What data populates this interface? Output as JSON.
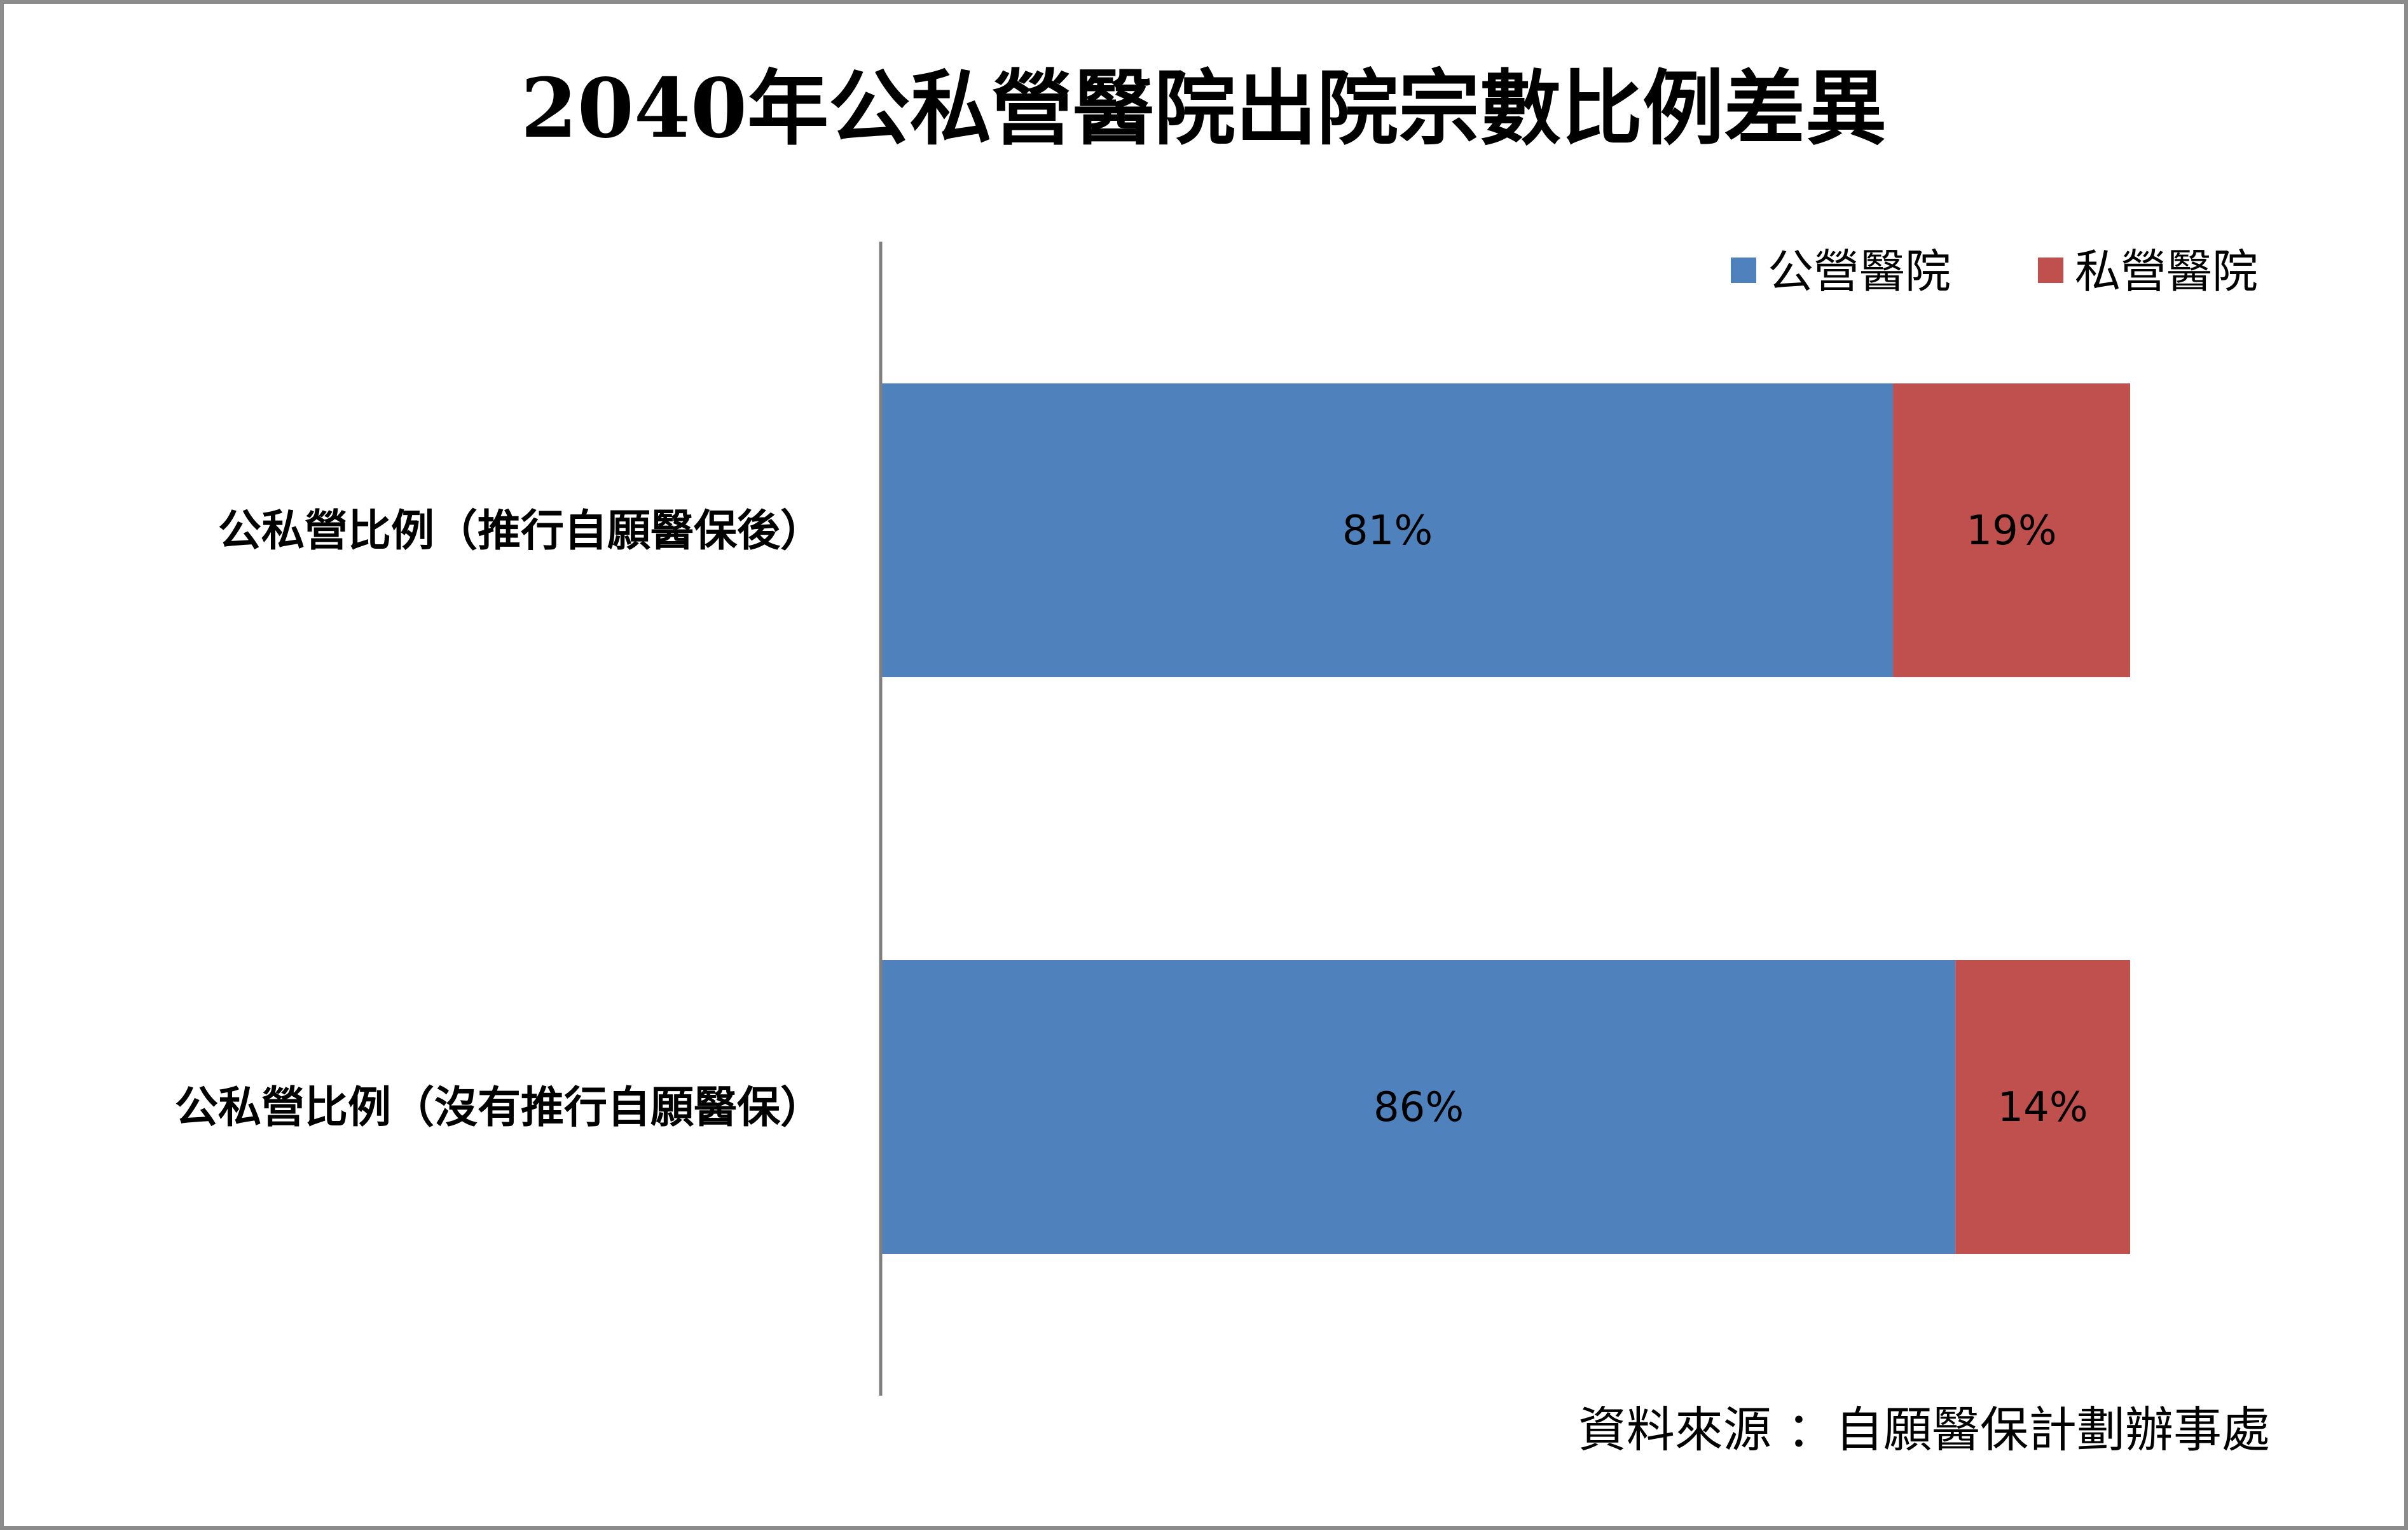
{
  "chart_data": {
    "type": "bar",
    "orientation": "horizontal",
    "stacked": true,
    "title": "2040年公私營醫院出院宗數比例差異",
    "categories": [
      "公私營比例（推行自願醫保後）",
      "公私營比例（沒有推行自願醫保）"
    ],
    "series": [
      {
        "name": "公營醫院",
        "values": [
          81,
          86
        ],
        "labels": [
          "81%",
          "86%"
        ],
        "color": "#4F81BD"
      },
      {
        "name": "私營醫院",
        "values": [
          19,
          14
        ],
        "labels": [
          "19%",
          "14%"
        ],
        "color": "#C0504D"
      }
    ],
    "xlim": [
      0,
      100
    ],
    "unit": "%",
    "grid": false,
    "legend_position": "top-right",
    "source": "資料來源 ：自願醫保計劃辦事處"
  }
}
